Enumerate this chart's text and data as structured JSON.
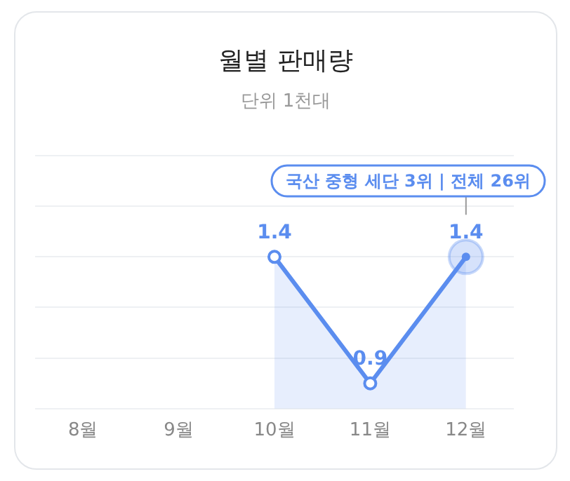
{
  "chart_data": {
    "type": "area",
    "title": "월별 판매량",
    "subtitle": "단위 1천대",
    "categories": [
      "8월",
      "9월",
      "10월",
      "11월",
      "12월"
    ],
    "values": [
      null,
      null,
      1.4,
      0.9,
      1.4
    ],
    "color": "#5b8def",
    "ylim": [
      0.8,
      1.8
    ],
    "yticks": [
      {
        "value": 0.8,
        "label": null
      },
      {
        "value": 1.0,
        "label": null
      },
      {
        "value": 1.2,
        "label": null
      },
      {
        "value": 1.4,
        "label": null
      },
      {
        "value": 1.6,
        "label": null
      },
      {
        "value": 1.8,
        "label": null
      }
    ],
    "grid": "y",
    "tick_labels": "x",
    "data_labels": true,
    "marker": "circle",
    "legend": false,
    "annotations": [
      "국산 중형 세단 3위 | 전체 26위"
    ]
  }
}
